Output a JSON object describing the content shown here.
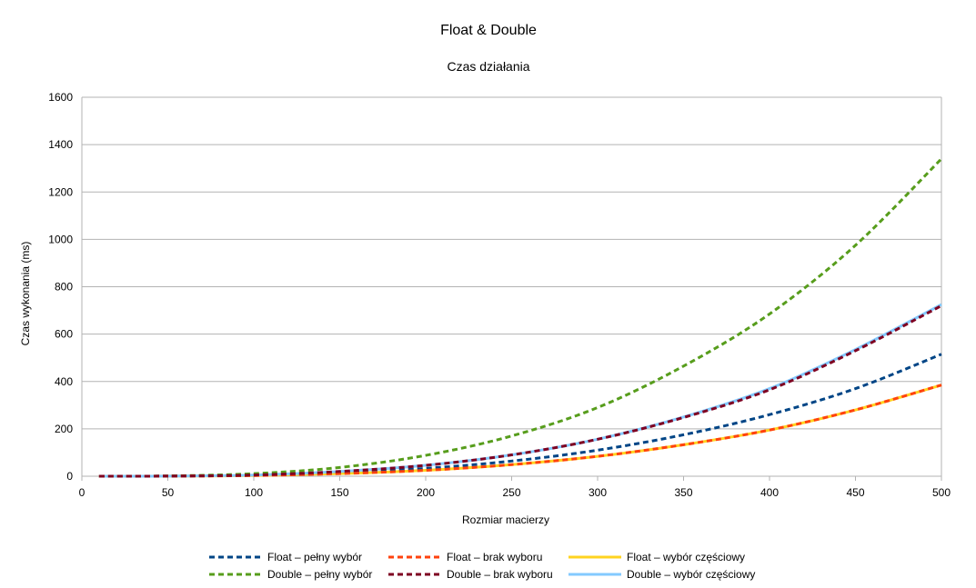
{
  "chart_data": {
    "type": "line",
    "title": "Float & Double",
    "subtitle": "Czas działania",
    "xlabel": "Rozmiar macierzy",
    "ylabel": "Czas wykonania (ms)",
    "xlim": [
      0,
      500
    ],
    "ylim": [
      0,
      1600
    ],
    "xticks": [
      0,
      50,
      100,
      150,
      200,
      250,
      300,
      350,
      400,
      450,
      500
    ],
    "yticks": [
      0,
      200,
      400,
      600,
      800,
      1000,
      1200,
      1400,
      1600
    ],
    "grid": "horizontal",
    "legend_position": "bottom",
    "x": [
      10,
      50,
      100,
      150,
      200,
      250,
      300,
      350,
      400,
      450,
      500
    ],
    "series": [
      {
        "name": "Float – pełny wybór",
        "color": "#004586",
        "dash": true,
        "values": [
          0,
          0.5,
          4,
          14,
          33,
          64,
          110,
          175,
          260,
          370,
          515
        ]
      },
      {
        "name": "Double – pełny wybór",
        "color": "#579d1c",
        "dash": true,
        "values": [
          0,
          1,
          11,
          37,
          88,
          170,
          290,
          465,
          685,
          975,
          1340
        ]
      },
      {
        "name": "Float – brak wyboru",
        "color": "#ff420e",
        "dash": true,
        "values": [
          0,
          0.4,
          3,
          11,
          25,
          49,
          84,
          133,
          195,
          280,
          385
        ]
      },
      {
        "name": "Double – brak wyboru",
        "color": "#7e0021",
        "dash": true,
        "values": [
          0,
          0.5,
          5,
          20,
          46,
          90,
          156,
          248,
          365,
          530,
          720
        ]
      },
      {
        "name": "Float – wybór częściowy",
        "color": "#ffd320",
        "dash": false,
        "values": [
          0,
          0.4,
          3,
          11,
          25,
          49,
          84,
          133,
          195,
          280,
          385
        ]
      },
      {
        "name": "Double – wybór częściowy",
        "color": "#83caff",
        "dash": false,
        "values": [
          0,
          0.5,
          5,
          20,
          46,
          90,
          156,
          250,
          370,
          535,
          725
        ]
      }
    ]
  }
}
